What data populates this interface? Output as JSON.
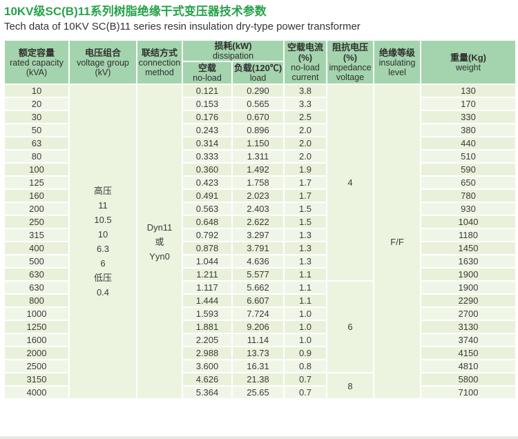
{
  "page": {
    "title": "10KV级SC(B)11系列树脂绝缘干式变压器技术参数",
    "subtitle": "Tech data of 10KV SC(B)11 series resin insulation dry-type power transformer"
  },
  "colors": {
    "title_green": "#27a24b",
    "header_bg": "#a4d4ad",
    "row_bg_odd": "#e9f1da",
    "row_bg_even": "#f0f6e7",
    "merged_cell_bg": "#ecf4e0",
    "grid": "#ffffff",
    "text": "#3a3a3a"
  },
  "table": {
    "headers": {
      "capacity": {
        "zh": "额定容量",
        "en": "rated capacity",
        "unit": "(kVA)"
      },
      "voltage": {
        "zh": "电压组合",
        "en": "voltage group",
        "unit": "(kV)"
      },
      "connection": {
        "zh": "联结方式",
        "en1": "connection",
        "en2": "method"
      },
      "loss": {
        "zh": "损耗(kW)",
        "en": "dissipation"
      },
      "loss_noload": {
        "zh": "空载",
        "en": "no-load"
      },
      "loss_load": {
        "zh": "负载(120℃)",
        "en": "load"
      },
      "current": {
        "zh": "空载电流",
        "pct": "(%)",
        "en1": "no-load",
        "en2": "current"
      },
      "impedance": {
        "zh": "阻抗电压",
        "pct": "(%)",
        "en1": "impedance",
        "en2": "voltage"
      },
      "insulating": {
        "zh": "绝缘等级",
        "en1": "insulating",
        "en2": "level"
      },
      "weight": {
        "zh": "重量(Kg)",
        "en": "weight"
      }
    },
    "voltage_group_lines": [
      "高压",
      "11",
      "10.5",
      "10",
      "6.3",
      "6",
      "低压",
      "0.4"
    ],
    "connection_lines": [
      "Dyn11",
      "或",
      "Yyn0"
    ],
    "insulating_level": "F/F",
    "impedance_cells": [
      {
        "value": "4",
        "span": 15
      },
      {
        "value": "6",
        "span": 7
      },
      {
        "value": "8",
        "span": 2
      }
    ],
    "rows": [
      {
        "capacity": "10",
        "noload": "0.121",
        "load": "0.290",
        "current": "3.8",
        "weight": "130"
      },
      {
        "capacity": "20",
        "noload": "0.153",
        "load": "0.565",
        "current": "3.3",
        "weight": "170"
      },
      {
        "capacity": "30",
        "noload": "0.176",
        "load": "0.670",
        "current": "2.5",
        "weight": "330"
      },
      {
        "capacity": "50",
        "noload": "0.243",
        "load": "0.896",
        "current": "2.0",
        "weight": "380"
      },
      {
        "capacity": "63",
        "noload": "0.314",
        "load": "1.150",
        "current": "2.0",
        "weight": "440"
      },
      {
        "capacity": "80",
        "noload": "0.333",
        "load": "1.311",
        "current": "2.0",
        "weight": "510"
      },
      {
        "capacity": "100",
        "noload": "0.360",
        "load": "1.492",
        "current": "1.9",
        "weight": "590"
      },
      {
        "capacity": "125",
        "noload": "0.423",
        "load": "1.758",
        "current": "1.7",
        "weight": "650"
      },
      {
        "capacity": "160",
        "noload": "0.491",
        "load": "2.023",
        "current": "1.7",
        "weight": "780"
      },
      {
        "capacity": "200",
        "noload": "0.563",
        "load": "2.403",
        "current": "1.5",
        "weight": "930"
      },
      {
        "capacity": "250",
        "noload": "0.648",
        "load": "2.622",
        "current": "1.5",
        "weight": "1040"
      },
      {
        "capacity": "315",
        "noload": "0.792",
        "load": "3.297",
        "current": "1.3",
        "weight": "1180"
      },
      {
        "capacity": "400",
        "noload": "0.878",
        "load": "3.791",
        "current": "1.3",
        "weight": "1450"
      },
      {
        "capacity": "500",
        "noload": "1.044",
        "load": "4.636",
        "current": "1.3",
        "weight": "1630"
      },
      {
        "capacity": "630",
        "noload": "1.211",
        "load": "5.577",
        "current": "1.1",
        "weight": "1900"
      },
      {
        "capacity": "630",
        "noload": "1.117",
        "load": "5.662",
        "current": "1.1",
        "weight": "1900"
      },
      {
        "capacity": "800",
        "noload": "1.444",
        "load": "6.607",
        "current": "1.1",
        "weight": "2290"
      },
      {
        "capacity": "1000",
        "noload": "1.593",
        "load": "7.724",
        "current": "1.0",
        "weight": "2700"
      },
      {
        "capacity": "1250",
        "noload": "1.881",
        "load": "9.206",
        "current": "1.0",
        "weight": "3130"
      },
      {
        "capacity": "1600",
        "noload": "2.205",
        "load": "11.14",
        "current": "1.0",
        "weight": "3740"
      },
      {
        "capacity": "2000",
        "noload": "2.988",
        "load": "13.73",
        "current": "0.9",
        "weight": "4150"
      },
      {
        "capacity": "2500",
        "noload": "3.600",
        "load": "16.31",
        "current": "0.8",
        "weight": "4810"
      },
      {
        "capacity": "3150",
        "noload": "4.626",
        "load": "21.38",
        "current": "0.7",
        "weight": "5800"
      },
      {
        "capacity": "4000",
        "noload": "5.364",
        "load": "25.65",
        "current": "0.7",
        "weight": "7100"
      }
    ]
  }
}
